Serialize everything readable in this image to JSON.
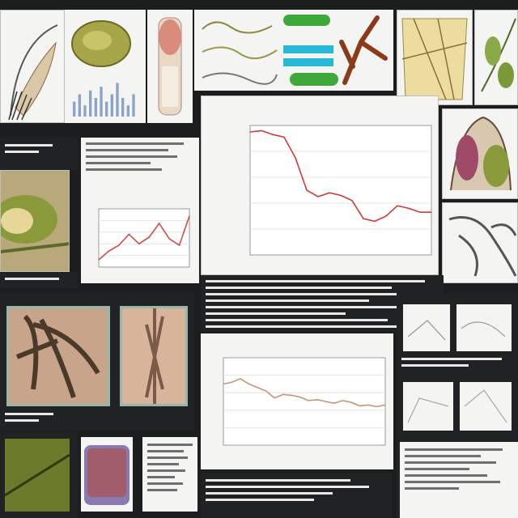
{
  "title_chart": "",
  "main_chart": {
    "title": "",
    "xlabel": "",
    "ylabel": ""
  },
  "chart_data": [
    {
      "type": "line",
      "title": "",
      "x": [
        1,
        2,
        3,
        4,
        5,
        6,
        7,
        8,
        9,
        10,
        11,
        12,
        13,
        14,
        15,
        16,
        17
      ],
      "series": [
        {
          "values": [
            9.5,
            9.6,
            9.3,
            9.1,
            7.5,
            5.0,
            4.5,
            4.8,
            4.6,
            4.2,
            2.8,
            2.6,
            3.0,
            3.8,
            3.6,
            3.3,
            3.3
          ]
        }
      ],
      "ylim": [
        0,
        10
      ],
      "color": "#d4373a"
    },
    {
      "type": "line",
      "title": "",
      "x": [
        1,
        2,
        3,
        4,
        5,
        6,
        7,
        8,
        9,
        10
      ],
      "series": [
        {
          "values": [
            1.0,
            2.2,
            3.0,
            4.5,
            3.2,
            4.1,
            6.0,
            3.9,
            3.0,
            7.0
          ]
        }
      ],
      "ylim": [
        0,
        8
      ],
      "color": "#d64a4a"
    },
    {
      "type": "line",
      "title": "",
      "x": [
        1,
        2,
        3,
        4,
        5,
        6,
        7,
        8,
        9,
        10,
        11,
        12,
        13,
        14,
        15,
        16,
        17,
        18,
        19,
        20
      ],
      "series": [
        {
          "values": [
            7.0,
            7.2,
            7.6,
            7.0,
            6.6,
            6.2,
            5.4,
            5.8,
            5.7,
            5.5,
            5.1,
            5.2,
            5.0,
            4.8,
            5.1,
            4.9,
            4.5,
            4.6,
            4.4,
            4.6
          ]
        }
      ],
      "ylim": [
        0,
        10
      ],
      "color": "#c89478"
    },
    {
      "type": "bar",
      "title": "",
      "categories": [
        "1",
        "2",
        "3",
        "4",
        "5",
        "6",
        "7",
        "8",
        "9",
        "10",
        "11",
        "12"
      ],
      "values": [
        4,
        6,
        3,
        7,
        5,
        8,
        4,
        6,
        9,
        5,
        3,
        6
      ],
      "ylim": [
        0,
        10
      ],
      "color": "#8aa4c8"
    }
  ],
  "colors": {
    "background": "#1b1d1f",
    "accent_red": "#d4373a",
    "pill_green": "#3ea83a",
    "pill_cyan": "#26b8d6",
    "plant_green": "#8a9a3a"
  },
  "icons": [
    "plant-illustration",
    "fern-illustration",
    "root-illustration",
    "leaf-illustration",
    "specimen-photo"
  ]
}
